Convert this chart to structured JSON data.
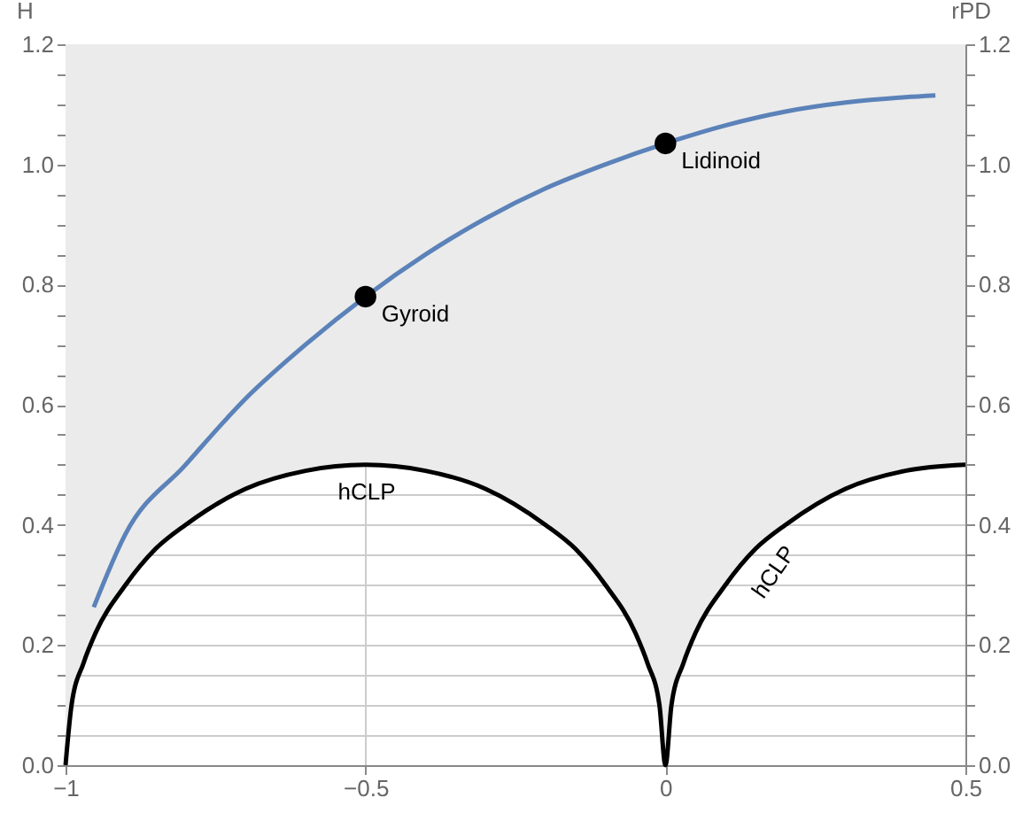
{
  "chart_data": {
    "type": "line",
    "ylabel": "H",
    "y2label": "rPD",
    "xlim": [
      -1,
      0.5
    ],
    "xticks": [
      {
        "value": -1,
        "label": "−1"
      },
      {
        "value": -0.5,
        "label": "−0.5"
      },
      0,
      0.5
    ],
    "ylim": [
      0,
      1.2
    ],
    "yticks": [
      {
        "value": 0,
        "label": "0.0"
      },
      {
        "value": 0.05,
        "label": null
      },
      {
        "value": 0.1,
        "label": null
      },
      {
        "value": 0.15,
        "label": null
      },
      0.2,
      {
        "value": 0.25,
        "label": null
      },
      {
        "value": 0.3,
        "label": null
      },
      {
        "value": 0.35,
        "label": null
      },
      0.4,
      {
        "value": 0.45,
        "label": null
      },
      {
        "value": 0.5,
        "label": null
      },
      {
        "value": 0.55,
        "label": null
      },
      0.6,
      {
        "value": 0.65,
        "label": null
      },
      {
        "value": 0.7,
        "label": null
      },
      {
        "value": 0.75,
        "label": null
      },
      0.8,
      {
        "value": 0.85,
        "label": null
      },
      {
        "value": 0.9,
        "label": null
      },
      {
        "value": 0.95,
        "label": null
      },
      {
        "value": 1,
        "label": "1.0"
      },
      {
        "value": 1.05,
        "label": null
      },
      {
        "value": 1.1,
        "label": null
      },
      {
        "value": 1.15,
        "label": null
      },
      1.2
    ],
    "y2lim": [
      0,
      1.2
    ],
    "y2ticks": [
      {
        "value": 0,
        "label": "0.0"
      },
      {
        "value": 0.05,
        "label": null
      },
      {
        "value": 0.1,
        "label": null
      },
      {
        "value": 0.15,
        "label": null
      },
      0.2,
      {
        "value": 0.25,
        "label": null
      },
      {
        "value": 0.3,
        "label": null
      },
      {
        "value": 0.35,
        "label": null
      },
      0.4,
      {
        "value": 0.45,
        "label": null
      },
      {
        "value": 0.5,
        "label": null
      },
      {
        "value": 0.55,
        "label": null
      },
      0.6,
      {
        "value": 0.65,
        "label": null
      },
      {
        "value": 0.7,
        "label": null
      },
      {
        "value": 0.75,
        "label": null
      },
      0.8,
      {
        "value": 0.85,
        "label": null
      },
      {
        "value": 0.9,
        "label": null
      },
      {
        "value": 0.95,
        "label": null
      },
      {
        "value": 1,
        "label": "1.0"
      },
      {
        "value": 1.05,
        "label": null
      },
      {
        "value": 1.1,
        "label": null
      },
      {
        "value": 1.15,
        "label": null
      },
      1.2
    ],
    "grid": true,
    "series": [
      {
        "color": "#000000",
        "x": [
          -1,
          -0.99,
          -0.97,
          -0.95,
          -0.9,
          -0.85,
          -0.8,
          -0.7,
          -0.6,
          -0.5,
          -0.4,
          -0.3,
          -0.2,
          -0.15,
          -0.1,
          -0.05,
          -0.03,
          -0.01,
          0,
          0.01,
          0.03,
          0.05,
          0.1,
          0.15,
          0.2,
          0.3,
          0.4,
          0.5
        ],
        "values": [
          0,
          0.1,
          0.17,
          0.22,
          0.3,
          0.36,
          0.4,
          0.46,
          0.49,
          0.5,
          0.49,
          0.46,
          0.4,
          0.36,
          0.3,
          0.22,
          0.17,
          0.1,
          0,
          0.1,
          0.17,
          0.22,
          0.3,
          0.36,
          0.4,
          0.46,
          0.49,
          0.5
        ],
        "lower": [
          0,
          0.1,
          0.17,
          0.22,
          0.3,
          0.36,
          0.4,
          0.46,
          0.49,
          0.5,
          0.49,
          0.46,
          0.4,
          0.36,
          0.3,
          0.22,
          0.17,
          0.1,
          0,
          0.1,
          0.17,
          0.22,
          0.3,
          0.36,
          0.4,
          0.46,
          0.49,
          0.5
        ],
        "upper": [
          1.2,
          1.2,
          1.2,
          1.2,
          1.2,
          1.2,
          1.2,
          1.2,
          1.2,
          1.2,
          1.2,
          1.2,
          1.2,
          1.2,
          1.2,
          1.2,
          1.2,
          1.2,
          1.2,
          1.2,
          1.2,
          1.2,
          1.2,
          1.2,
          1.2,
          1.2,
          1.2,
          1.2
        ]
      },
      {
        "color": "#5b82b9",
        "x": [
          -0.953,
          -0.9,
          -0.8,
          -0.7,
          -0.6,
          -0.5,
          -0.4,
          -0.3,
          -0.2,
          -0.1,
          0,
          0.1,
          0.2,
          0.3,
          0.4,
          0.45
        ],
        "values": [
          0.263,
          0.385,
          0.5,
          0.61,
          0.7,
          0.78,
          0.85,
          0.91,
          0.96,
          1.0,
          1.035,
          1.065,
          1.088,
          1.103,
          1.112,
          1.115
        ]
      },
      {
        "type": "scatter",
        "color": "#000000",
        "marker": "circle",
        "x": [
          -0.5,
          0
        ],
        "values": [
          0.78,
          1.035
        ]
      }
    ],
    "annotations": [
      {
        "text": "Gyroid",
        "x": -0.5,
        "y": 0.78
      },
      {
        "text": "Lidinoid",
        "x": 0,
        "y": 1.035
      },
      "hCLP",
      "hCLP"
    ]
  }
}
